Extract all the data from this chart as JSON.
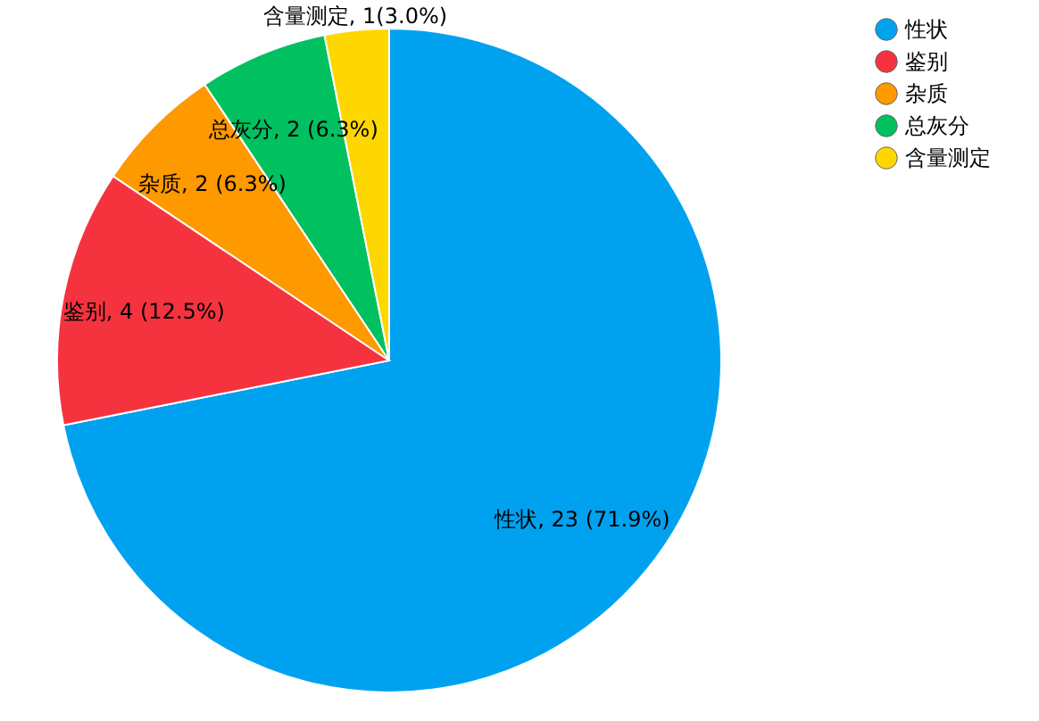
{
  "chart_data": {
    "type": "pie",
    "categories": [
      "性状",
      "鉴别",
      "杂质",
      "总灰分",
      "含量测定"
    ],
    "values": [
      23,
      4,
      2,
      2,
      1
    ],
    "colors": [
      "#00a2f0",
      "#f5333f",
      "#ff9900",
      "#00c060",
      "#ffd700"
    ],
    "value_labels": [
      "性状, 23 (71.9%)",
      "鉴别, 4 (12.5%)",
      "杂质, 2 (6.3%)",
      "总灰分, 2 (6.3%)",
      "含量测定, 1(3.0%)"
    ],
    "legend": "top right"
  }
}
